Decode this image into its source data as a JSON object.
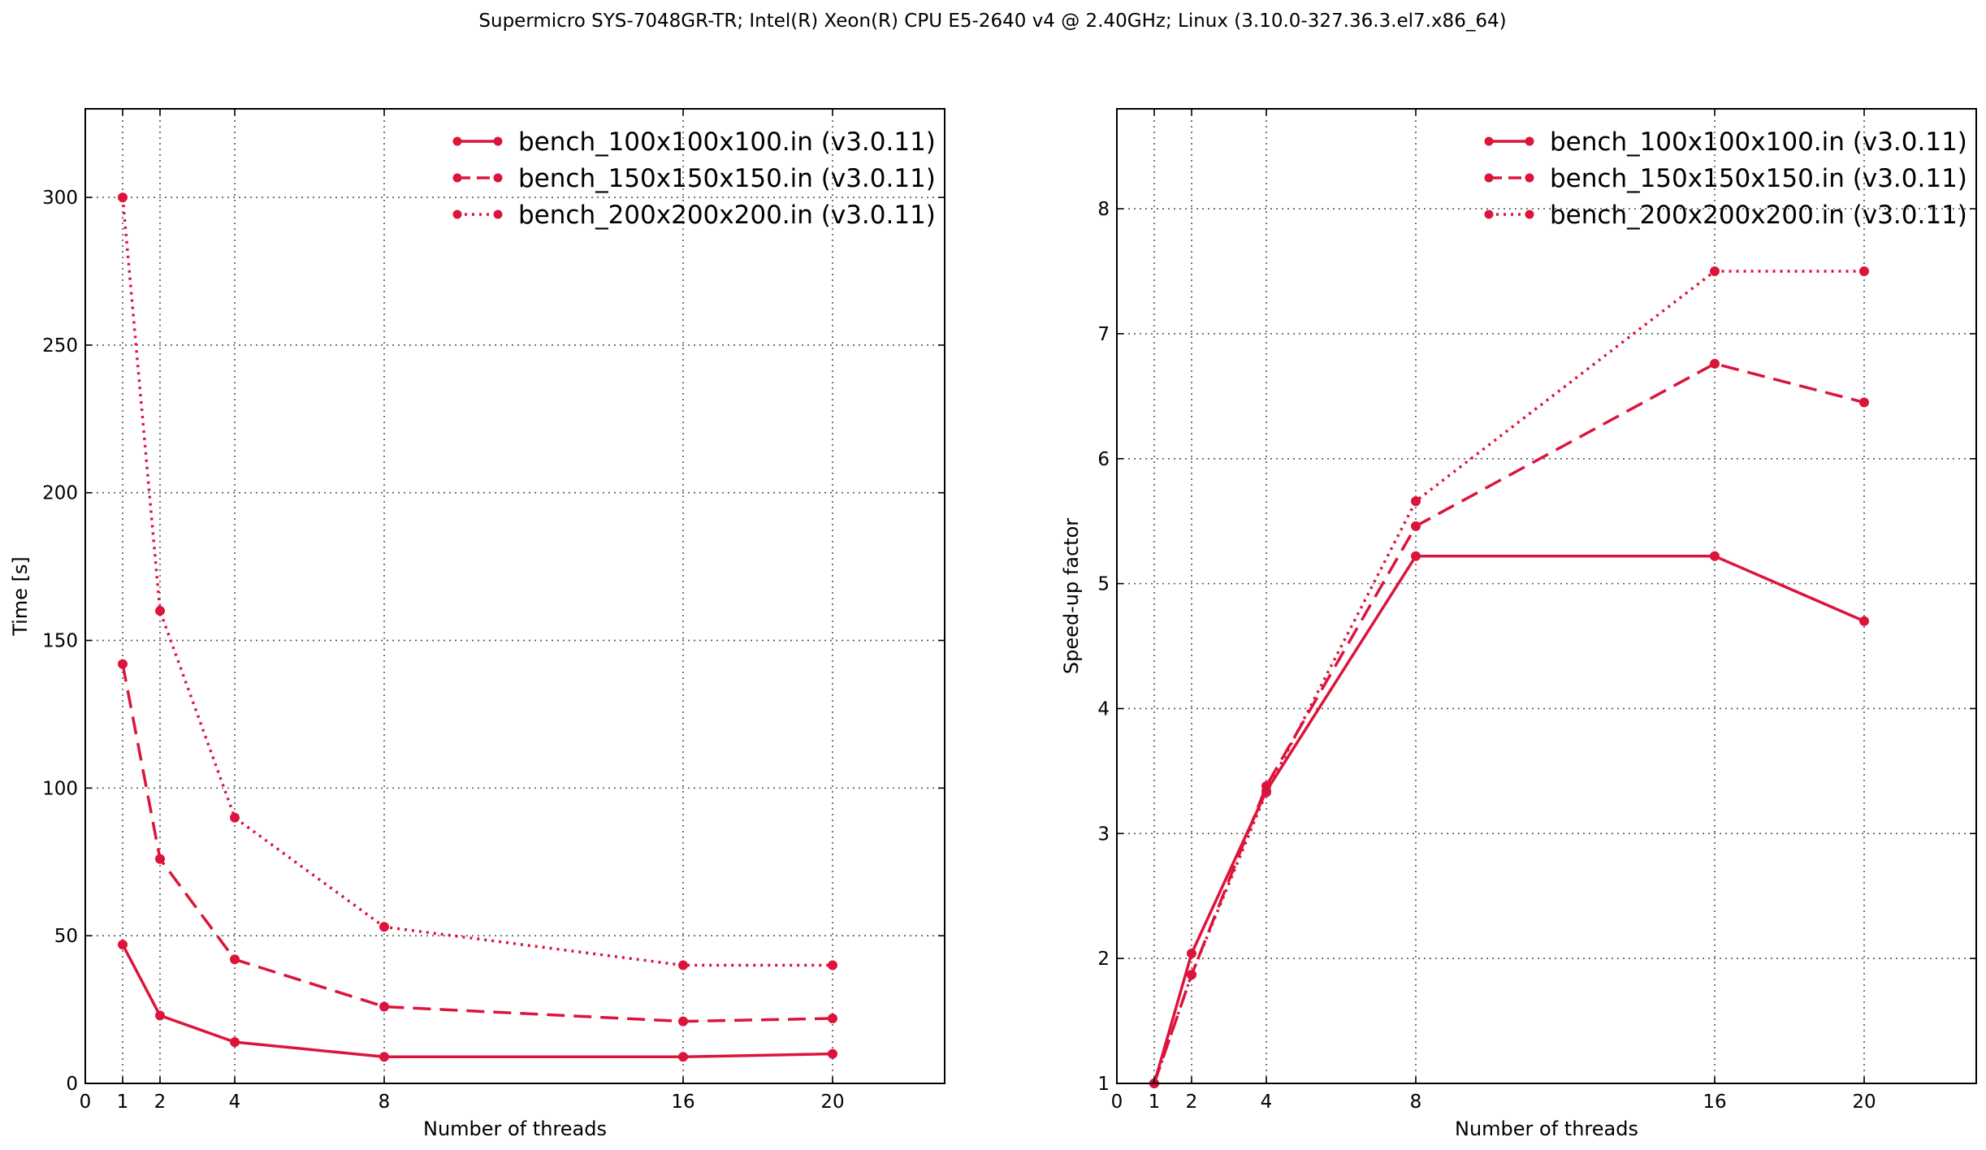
{
  "figure_title": "Supermicro SYS-7048GR-TR; Intel(R) Xeon(R) CPU E5-2640 v4 @ 2.40GHz; Linux (3.10.0-327.36.3.el7.x86_64)",
  "series_color": "#dc143c",
  "chart_data": [
    {
      "type": "line",
      "xlabel": "Number of threads",
      "ylabel": "Time [s]",
      "xlim": [
        0,
        23
      ],
      "ylim": [
        0,
        330
      ],
      "xticks": [
        0,
        1,
        2,
        4,
        8,
        16,
        20
      ],
      "yticks": [
        0,
        50,
        100,
        150,
        200,
        250,
        300
      ],
      "grid": true,
      "legend_position": "top-right",
      "x": [
        1,
        2,
        4,
        8,
        16,
        20
      ],
      "series": [
        {
          "name": "bench_100x100x100.in (v3.0.11)",
          "line_style": "solid",
          "values": [
            47,
            23,
            14,
            9,
            9,
            10
          ]
        },
        {
          "name": "bench_150x150x150.in (v3.0.11)",
          "line_style": "dashed",
          "values": [
            142,
            76,
            42,
            26,
            21,
            22
          ]
        },
        {
          "name": "bench_200x200x200.in (v3.0.11)",
          "line_style": "dotted",
          "values": [
            300,
            160,
            90,
            53,
            40,
            40
          ]
        }
      ]
    },
    {
      "type": "line",
      "xlabel": "Number of threads",
      "ylabel": "Speed-up factor",
      "xlim": [
        0,
        23
      ],
      "ylim": [
        1,
        8.8
      ],
      "xticks": [
        0,
        1,
        2,
        4,
        8,
        16,
        20
      ],
      "yticks": [
        1,
        2,
        3,
        4,
        5,
        6,
        7,
        8
      ],
      "grid": true,
      "legend_position": "top-right",
      "x": [
        1,
        2,
        4,
        8,
        16,
        20
      ],
      "series": [
        {
          "name": "bench_100x100x100.in (v3.0.11)",
          "line_style": "solid",
          "values": [
            1.0,
            2.04,
            3.34,
            5.22,
            5.22,
            4.7
          ]
        },
        {
          "name": "bench_150x150x150.in (v3.0.11)",
          "line_style": "dashed",
          "values": [
            1.0,
            1.87,
            3.38,
            5.46,
            6.76,
            6.45
          ]
        },
        {
          "name": "bench_200x200x200.in (v3.0.11)",
          "line_style": "dotted",
          "values": [
            1.0,
            1.87,
            3.33,
            5.66,
            7.5,
            7.5
          ]
        }
      ]
    }
  ]
}
